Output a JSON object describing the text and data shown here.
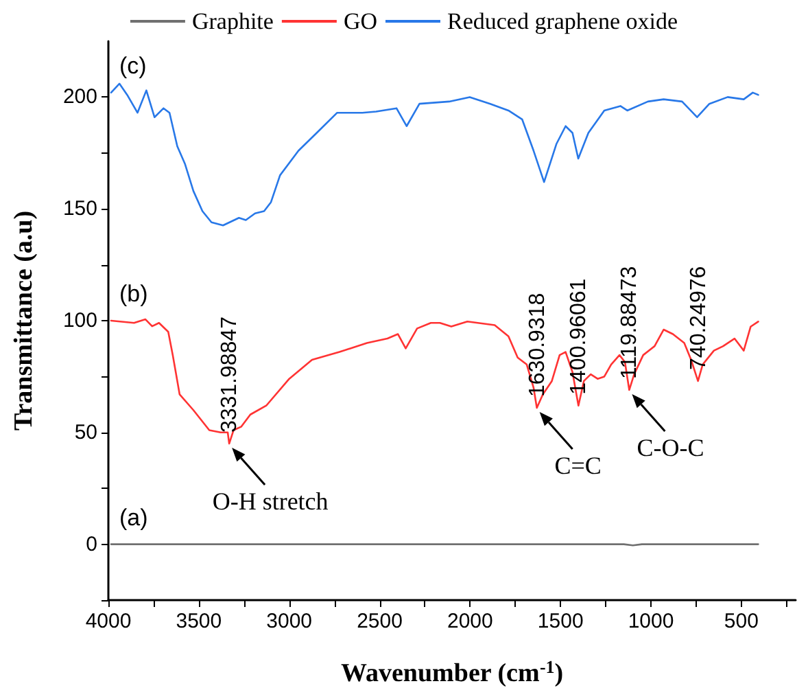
{
  "chart_data": {
    "type": "line",
    "xlabel": "Wavenumber (cm$^{-1}$)",
    "ylabel": "Transmittance (a.u)",
    "xlim": [
      4000,
      200
    ],
    "xticks": [
      4000,
      {
        "value": 3750,
        "label": null
      },
      3500,
      {
        "value": 3250,
        "label": null
      },
      3000,
      {
        "value": 2750,
        "label": null
      },
      2500,
      {
        "value": 2250,
        "label": null
      },
      2000,
      {
        "value": 1750,
        "label": null
      },
      1500,
      {
        "value": 1250,
        "label": null
      },
      1000,
      {
        "value": 750,
        "label": null
      },
      500,
      {
        "value": 250,
        "label": null
      }
    ],
    "ylim": [
      -25,
      225
    ],
    "yticks": [
      {
        "value": -25,
        "label": null
      },
      0,
      {
        "value": 25,
        "label": null
      },
      50,
      {
        "value": 75,
        "label": null
      },
      100,
      {
        "value": 125,
        "label": null
      },
      150,
      {
        "value": 175,
        "label": null
      },
      200
    ],
    "grid": false,
    "legend": "top",
    "marker": "none",
    "line_style": "solid",
    "series": [
      {
        "name": "Graphite",
        "color": "#707070",
        "x": [
          3985,
          3500,
          3000,
          2500,
          2000,
          1500,
          1150,
          1100,
          1050,
          500,
          407
        ],
        "values": [
          0,
          0,
          0,
          0,
          0,
          0,
          0,
          -0.5,
          0,
          0,
          0
        ]
      },
      {
        "name": "GO",
        "color": "#ff3333",
        "x": [
          3985,
          3858,
          3795,
          3758,
          3720,
          3669,
          3644,
          3606,
          3530,
          3442,
          3379,
          3340,
          3332,
          3308,
          3265,
          3215,
          3127,
          3000,
          2874,
          2722,
          2570,
          2457,
          2399,
          2356,
          2293,
          2217,
          2167,
          2104,
          2015,
          1864,
          1788,
          1737,
          1687,
          1649,
          1631,
          1598,
          1548,
          1505,
          1472,
          1434,
          1401,
          1371,
          1333,
          1295,
          1258,
          1220,
          1174,
          1144,
          1120,
          1093,
          1043,
          980,
          930,
          879,
          816,
          778,
          740,
          714,
          652,
          601,
          538,
          487,
          449,
          407
        ],
        "values": [
          100,
          99,
          100.6,
          97.5,
          99,
          95,
          84.6,
          67,
          60,
          51,
          50,
          50,
          45,
          51,
          52.6,
          58,
          62,
          74,
          82.5,
          86,
          90,
          92,
          94,
          87.6,
          96.5,
          99,
          99,
          97.4,
          99.6,
          98,
          93,
          83.5,
          80.4,
          70,
          61,
          67,
          73,
          84.6,
          86,
          77,
          62,
          73,
          76,
          74,
          75,
          80.4,
          84.6,
          81.5,
          69,
          76,
          84.6,
          88.6,
          96,
          94,
          90,
          82.5,
          73,
          80.4,
          86.6,
          88.6,
          92,
          86.6,
          97.3,
          99.6
        ]
      },
      {
        "name": "Reduced graphene oxide",
        "color": "#2878e8",
        "x": [
          3985,
          3939,
          3896,
          3839,
          3790,
          3745,
          3695,
          3662,
          3619,
          3576,
          3530,
          3480,
          3430,
          3366,
          3278,
          3240,
          3189,
          3139,
          3101,
          3051,
          2949,
          2848,
          2735,
          2596,
          2520,
          2407,
          2351,
          2280,
          2116,
          2002,
          1889,
          1788,
          1712,
          1649,
          1591,
          1523,
          1472,
          1434,
          1402,
          1346,
          1258,
          1169,
          1131,
          1017,
          930,
          828,
          745,
          677,
          576,
          487,
          437,
          407
        ],
        "values": [
          202,
          206,
          201,
          193,
          203,
          191,
          195,
          193,
          178,
          170,
          158,
          149,
          144,
          142.6,
          146,
          145,
          148,
          149,
          153,
          165,
          176,
          184,
          193,
          193,
          193.5,
          195,
          187,
          197,
          198,
          200,
          197,
          194,
          190,
          176,
          162,
          179,
          187,
          184,
          172.5,
          184,
          194,
          196,
          194,
          198,
          199,
          198,
          191,
          197,
          200,
          199,
          202,
          201
        ]
      }
    ],
    "annotations": [
      "(a)",
      "(b)",
      "(c)",
      "O-H stretch",
      "C=C",
      "C-O-C",
      {
        "text": "3331.98847",
        "x": 3332,
        "y": 45
      },
      {
        "text": "1630.9318",
        "x": 1631,
        "y": 61
      },
      {
        "text": "1119.88473",
        "x": 1120,
        "y": 69
      },
      {
        "text": "1400.96061",
        "x": 1401,
        "y": 62
      },
      {
        "text": "740.24976",
        "x": 740,
        "y": 73
      }
    ]
  }
}
